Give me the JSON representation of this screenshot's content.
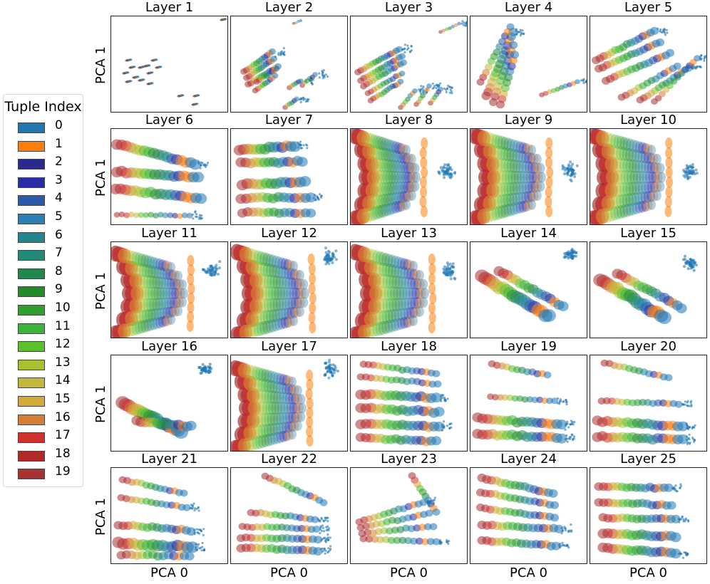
{
  "chart_data": {
    "type": "scatter",
    "description_kind": "grid of 25 PCA scatter subplots",
    "xlabel": "PCA 0",
    "ylabel": "PCA 1",
    "legend": {
      "title": "Tuple Index",
      "entries": [
        {
          "label": "0",
          "color": "#1f77b4"
        },
        {
          "label": "1",
          "color": "#ff7f0e"
        },
        {
          "label": "2",
          "color": "#2a2a8c"
        },
        {
          "label": "3",
          "color": "#2b2ba8"
        },
        {
          "label": "4",
          "color": "#2c5aab"
        },
        {
          "label": "5",
          "color": "#2b7fb5"
        },
        {
          "label": "6",
          "color": "#23868f"
        },
        {
          "label": "7",
          "color": "#238a7a"
        },
        {
          "label": "8",
          "color": "#22864f"
        },
        {
          "label": "9",
          "color": "#238b2a"
        },
        {
          "label": "10",
          "color": "#2ea02c"
        },
        {
          "label": "11",
          "color": "#3ab53a"
        },
        {
          "label": "12",
          "color": "#5cbf30"
        },
        {
          "label": "13",
          "color": "#a6c232"
        },
        {
          "label": "14",
          "color": "#c4b83a"
        },
        {
          "label": "15",
          "color": "#d4a93a"
        },
        {
          "label": "16",
          "color": "#d47f35"
        },
        {
          "label": "17",
          "color": "#d0312f"
        },
        {
          "label": "18",
          "color": "#b02a2a"
        },
        {
          "label": "19",
          "color": "#a83232"
        }
      ]
    },
    "panels": [
      {
        "title": "Layer 1"
      },
      {
        "title": "Layer 2"
      },
      {
        "title": "Layer 3"
      },
      {
        "title": "Layer 4"
      },
      {
        "title": "Layer 5"
      },
      {
        "title": "Layer 6"
      },
      {
        "title": "Layer 7"
      },
      {
        "title": "Layer 8"
      },
      {
        "title": "Layer 9"
      },
      {
        "title": "Layer 10"
      },
      {
        "title": "Layer 11"
      },
      {
        "title": "Layer 12"
      },
      {
        "title": "Layer 13"
      },
      {
        "title": "Layer 14"
      },
      {
        "title": "Layer 15"
      },
      {
        "title": "Layer 16"
      },
      {
        "title": "Layer 17"
      },
      {
        "title": "Layer 18"
      },
      {
        "title": "Layer 19"
      },
      {
        "title": "Layer 20"
      },
      {
        "title": "Layer 21"
      },
      {
        "title": "Layer 22"
      },
      {
        "title": "Layer 23"
      },
      {
        "title": "Layer 24"
      },
      {
        "title": "Layer 25"
      }
    ]
  }
}
